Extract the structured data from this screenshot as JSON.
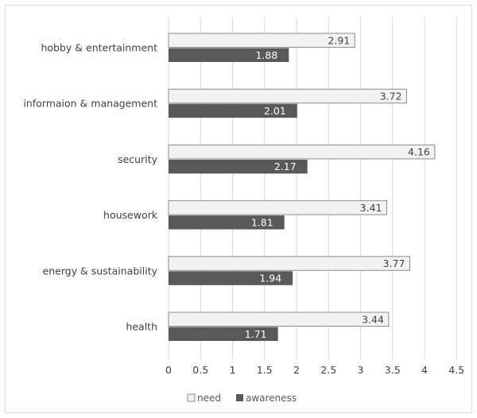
{
  "chart_data": {
    "type": "bar",
    "orientation": "horizontal",
    "categories": [
      "hobby & entertainment",
      "informaion & management",
      "security",
      "housework",
      "energy & sustainability",
      "health"
    ],
    "series": [
      {
        "name": "need",
        "values": [
          2.91,
          3.72,
          4.16,
          3.41,
          3.77,
          3.44
        ],
        "color": "#f2f2f2",
        "stroke": "#8c8c8c",
        "label_color": "#404040"
      },
      {
        "name": "awareness",
        "values": [
          1.88,
          2.01,
          2.17,
          1.81,
          1.94,
          1.71
        ],
        "color": "#595959",
        "stroke": "#595959",
        "label_color": "#ffffff"
      }
    ],
    "value_labels": {
      "need": [
        "2.91",
        "3.72",
        "4.16",
        "3.41",
        "3.77",
        "3.44"
      ],
      "awareness": [
        "1.88",
        "2.01",
        "2.17",
        "1.81",
        "1.94",
        "1.71"
      ]
    },
    "xticks": [
      "0",
      "0.5",
      "1",
      "1.5",
      "2",
      "2.5",
      "3",
      "3.5",
      "4",
      "4.5"
    ],
    "xlim": [
      0,
      4.5
    ],
    "grid": true,
    "legend_position": "bottom-center",
    "title": "",
    "xlabel": "",
    "ylabel": ""
  },
  "legend": {
    "need_label": "need",
    "awareness_label": "awareness"
  },
  "colors": {
    "grid": "#d9d9d9",
    "text": "#404040"
  }
}
